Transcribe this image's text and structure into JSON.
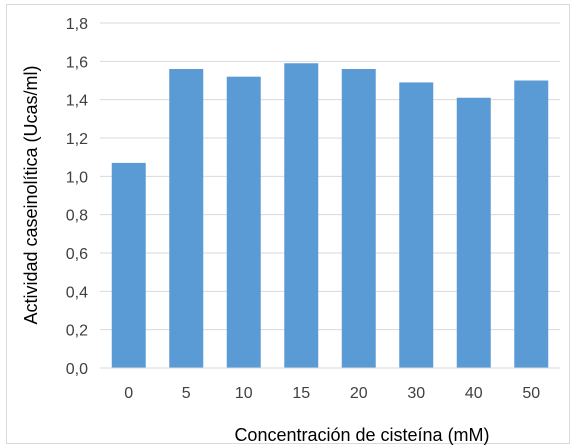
{
  "chart_data": {
    "type": "bar",
    "categories": [
      "0",
      "5",
      "10",
      "15",
      "20",
      "30",
      "40",
      "50"
    ],
    "values": [
      1.07,
      1.56,
      1.52,
      1.59,
      1.56,
      1.49,
      1.41,
      1.5
    ],
    "title": "",
    "xlabel": "Concentración de cisteína (mM)",
    "ylabel": "Actividad caseinolítica (Ucas/ml)",
    "ylim": [
      0,
      1.8
    ],
    "yticks": [
      "0,0",
      "0,2",
      "0,4",
      "0,6",
      "0,8",
      "1,0",
      "1,2",
      "1,4",
      "1,6",
      "1,8"
    ],
    "grid": true,
    "legend": "none",
    "bar_color": "#5b9bd5",
    "grid_color": "#d9d9d9"
  }
}
